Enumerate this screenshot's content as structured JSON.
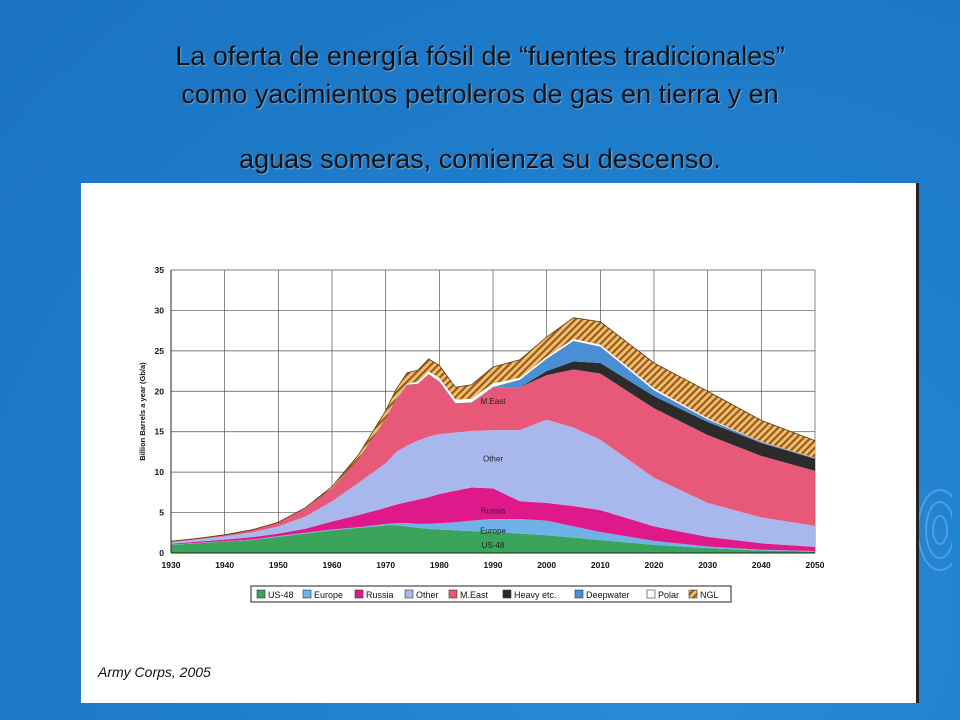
{
  "slide": {
    "title_line1": "La oferta de energía fósil de “fuentes tradicionales”",
    "title_line2": "como yacimientos petroleros de gas en tierra y en",
    "title_line3": "aguas someras, comienza su descenso.",
    "background_color": "#1f7fcd",
    "source_credit": "Army Corps, 2005"
  },
  "chart_data": {
    "type": "area",
    "stacked": true,
    "title": "",
    "xlabel": "",
    "ylabel": "Billion Barrels a year (Gb/a)",
    "xlim": [
      1930,
      2050
    ],
    "ylim": [
      0,
      35
    ],
    "x_ticks": [
      "1930",
      "1940",
      "1950",
      "1960",
      "1970",
      "1980",
      "1990",
      "2000",
      "2010",
      "2020",
      "2030",
      "2040",
      "2050"
    ],
    "y_ticks": [
      "0",
      "5",
      "10",
      "15",
      "20",
      "25",
      "30",
      "35"
    ],
    "grid": true,
    "legend_position": "bottom",
    "x": [
      1930,
      1935,
      1940,
      1945,
      1950,
      1955,
      1960,
      1965,
      1970,
      1972,
      1974,
      1976,
      1978,
      1980,
      1983,
      1986,
      1990,
      1995,
      2000,
      2005,
      2010,
      2020,
      2030,
      2040,
      2050
    ],
    "series": [
      {
        "name": "US-48",
        "color": "#3aa45a",
        "values": [
          1.0,
          1.2,
          1.4,
          1.6,
          2.0,
          2.4,
          2.8,
          3.1,
          3.4,
          3.4,
          3.3,
          3.1,
          3.0,
          2.9,
          2.8,
          2.7,
          2.6,
          2.4,
          2.2,
          1.9,
          1.6,
          1.0,
          0.6,
          0.3,
          0.2
        ]
      },
      {
        "name": "Europe",
        "color": "#6fb2e8",
        "values": [
          0.05,
          0.05,
          0.05,
          0.05,
          0.1,
          0.1,
          0.1,
          0.1,
          0.2,
          0.3,
          0.4,
          0.5,
          0.6,
          0.8,
          1.0,
          1.3,
          1.6,
          1.8,
          1.8,
          1.4,
          1.0,
          0.5,
          0.2,
          0.1,
          0.05
        ]
      },
      {
        "name": "Russia",
        "color": "#e0198a",
        "values": [
          0.1,
          0.15,
          0.2,
          0.3,
          0.3,
          0.5,
          1.0,
          1.5,
          2.0,
          2.3,
          2.6,
          3.0,
          3.3,
          3.6,
          3.9,
          4.1,
          3.8,
          2.2,
          2.2,
          2.5,
          2.7,
          1.8,
          1.2,
          0.8,
          0.5
        ]
      },
      {
        "name": "Other",
        "color": "#a9b8ec",
        "values": [
          0.2,
          0.3,
          0.4,
          0.6,
          0.9,
          1.5,
          2.5,
          4.0,
          5.5,
          6.5,
          7.0,
          7.3,
          7.5,
          7.4,
          7.2,
          7.0,
          7.2,
          8.8,
          10.3,
          9.7,
          8.7,
          6.0,
          4.2,
          3.2,
          2.6
        ]
      },
      {
        "name": "M.East",
        "color": "#e85878",
        "values": [
          0.1,
          0.1,
          0.2,
          0.3,
          0.5,
          1.0,
          1.6,
          3.0,
          5.5,
          6.5,
          7.5,
          7.0,
          7.7,
          6.5,
          3.6,
          3.5,
          5.2,
          5.3,
          5.5,
          7.2,
          8.2,
          8.6,
          8.4,
          7.6,
          6.8
        ]
      },
      {
        "name": "Heavy etc.",
        "color": "#2b2b2b",
        "values": [
          0,
          0,
          0,
          0,
          0,
          0,
          0,
          0,
          0,
          0,
          0,
          0,
          0,
          0,
          0,
          0,
          0,
          0,
          0.5,
          1.0,
          1.3,
          1.5,
          1.6,
          1.6,
          1.5
        ]
      },
      {
        "name": "Deepwater",
        "color": "#4a8fd6",
        "values": [
          0,
          0,
          0,
          0,
          0,
          0,
          0,
          0,
          0,
          0,
          0,
          0,
          0,
          0,
          0,
          0,
          0.1,
          0.9,
          1.5,
          2.5,
          2.0,
          0.7,
          0.3,
          0.1,
          0.05
        ]
      },
      {
        "name": "Polar",
        "color": "#ffffff",
        "values": [
          0,
          0,
          0,
          0,
          0,
          0,
          0,
          0,
          0,
          0.1,
          0.2,
          0.3,
          0.4,
          0.5,
          0.5,
          0.5,
          0.5,
          0.3,
          0.3,
          0.3,
          0.3,
          0.3,
          0.2,
          0.1,
          0.1
        ]
      },
      {
        "name": "NGL",
        "color": "#c87a2a",
        "values": [
          0,
          0,
          0,
          0,
          0,
          0.1,
          0.2,
          0.5,
          1.0,
          1.2,
          1.3,
          1.4,
          1.5,
          1.5,
          1.5,
          1.7,
          2.0,
          2.2,
          2.4,
          2.6,
          2.8,
          3.1,
          3.3,
          2.6,
          2.1
        ]
      }
    ],
    "annotations": [
      {
        "text": "M.East",
        "x": 1990,
        "y": 18.4
      },
      {
        "text": "Other",
        "x": 1990,
        "y": 11.3
      },
      {
        "text": "Russia",
        "x": 1990,
        "y": 4.9
      },
      {
        "text": "Europe",
        "x": 1990,
        "y": 2.4
      },
      {
        "text": "US-48",
        "x": 1990,
        "y": 0.6
      }
    ]
  }
}
